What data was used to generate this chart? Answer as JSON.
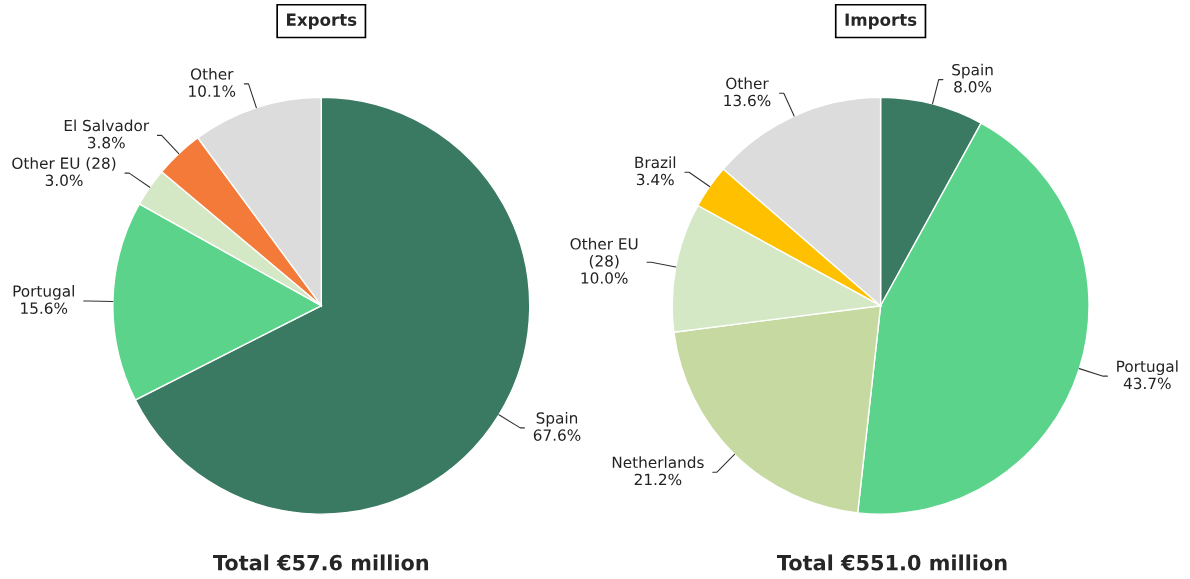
{
  "chart_data": [
    {
      "type": "pie",
      "title": "Exports",
      "categories": [
        "Spain",
        "Portugal",
        "Other EU (28)",
        "El Salvador",
        "Other"
      ],
      "values": [
        67.6,
        15.6,
        3.0,
        3.8,
        10.1
      ],
      "value_labels": [
        "67.6%",
        "15.6%",
        "3.0%",
        "3.8%",
        "10.1%"
      ],
      "colors": [
        "#3a7a62",
        "#5cd38b",
        "#d5e8c6",
        "#f47a3a",
        "#dcdcdc"
      ],
      "annotations": [
        "Total €57.6 million"
      ]
    },
    {
      "type": "pie",
      "title": "Imports",
      "categories": [
        "Spain",
        "Portugal",
        "Netherlands",
        "Other EU\n(28)",
        "Brazil",
        "Other"
      ],
      "values": [
        8.0,
        43.7,
        21.2,
        10.0,
        3.4,
        13.6
      ],
      "value_labels": [
        "8.0%",
        "43.7%",
        "21.2%",
        "10.0%",
        "3.4%",
        "13.6%"
      ],
      "colors": [
        "#3a7a62",
        "#5cd38b",
        "#c6d9a0",
        "#d5e8c6",
        "#ffc000",
        "#dcdcdc"
      ],
      "annotations": [
        "Total €551.0 million"
      ]
    }
  ]
}
